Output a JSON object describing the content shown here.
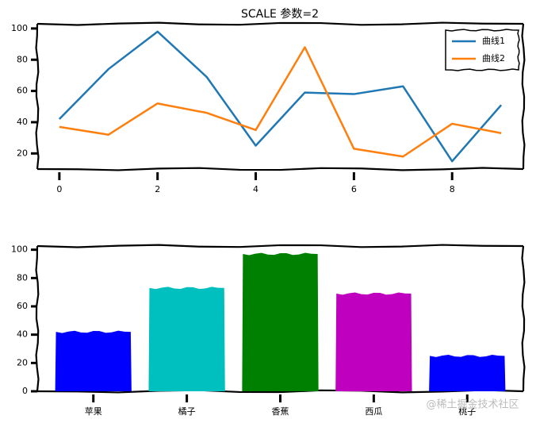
{
  "chart_data": [
    {
      "type": "line",
      "title": "SCALE 参数=2",
      "x": [
        0,
        1,
        2,
        3,
        4,
        5,
        6,
        7,
        8,
        9
      ],
      "series": [
        {
          "name": "曲线1",
          "color": "#1f77b4",
          "values": [
            42,
            74,
            98,
            69,
            25,
            59,
            58,
            63,
            15,
            51
          ]
        },
        {
          "name": "曲线2",
          "color": "#ff7f0e",
          "values": [
            37,
            32,
            52,
            46,
            35,
            88,
            23,
            18,
            39,
            33
          ]
        }
      ],
      "xlim": [
        -0.45,
        9.45
      ],
      "xticks": [
        0,
        2,
        4,
        6,
        8
      ],
      "ylim": [
        10,
        103
      ],
      "yticks": [
        20,
        40,
        60,
        80,
        100
      ],
      "legend": "upper right"
    },
    {
      "type": "bar",
      "categories": [
        "苹果",
        "橘子",
        "香蕉",
        "西瓜",
        "桃子"
      ],
      "values": [
        42,
        73,
        97,
        69,
        25
      ],
      "colors": [
        "#0000ff",
        "#00bfbf",
        "#008000",
        "#bf00bf",
        "#0000ff"
      ],
      "ylim": [
        0,
        102.6
      ],
      "yticks": [
        0,
        20,
        40,
        60,
        80,
        100
      ]
    }
  ],
  "watermark": "@稀土掘金技术社区"
}
